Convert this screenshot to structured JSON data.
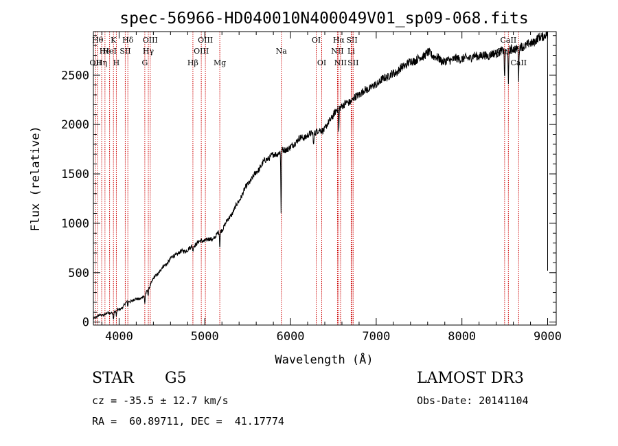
{
  "chart_data": {
    "type": "line",
    "title": "spec-56966-HD040010N400049V01_sp09-068.fits",
    "xlabel": "Wavelength (Å)",
    "ylabel": "Flux (relative)",
    "xlim": [
      3700,
      9100
    ],
    "ylim": [
      -30,
      2940
    ],
    "xticks": [
      4000,
      5000,
      6000,
      7000,
      8000,
      9000
    ],
    "yticks": [
      0,
      500,
      1000,
      1500,
      2000,
      2500
    ],
    "line_color": "#000000",
    "marker_color": "#cc0000",
    "spectrum_anchors": {
      "x": [
        3700,
        3800,
        3900,
        4000,
        4100,
        4200,
        4300,
        4400,
        4500,
        4600,
        4700,
        4800,
        4900,
        5000,
        5100,
        5200,
        5300,
        5400,
        5500,
        5600,
        5700,
        5800,
        5900,
        6000,
        6100,
        6200,
        6300,
        6400,
        6500,
        6600,
        6700,
        6800,
        6900,
        7000,
        7200,
        7400,
        7600,
        7800,
        8000,
        8200,
        8400,
        8500,
        8600,
        8700,
        8800,
        8900,
        9000
      ],
      "y": [
        50,
        70,
        90,
        130,
        200,
        230,
        270,
        430,
        550,
        640,
        700,
        740,
        790,
        830,
        850,
        930,
        1080,
        1230,
        1390,
        1520,
        1630,
        1690,
        1740,
        1760,
        1860,
        1890,
        1920,
        1960,
        2100,
        2190,
        2240,
        2300,
        2360,
        2410,
        2520,
        2630,
        2720,
        2640,
        2670,
        2690,
        2720,
        2740,
        2770,
        2780,
        2820,
        2880,
        2910
      ]
    },
    "absorption_dips": [
      {
        "x": 3934,
        "depth": 70
      },
      {
        "x": 3968,
        "depth": 60
      },
      {
        "x": 4101,
        "depth": 50
      },
      {
        "x": 4300,
        "depth": 90
      },
      {
        "x": 4340,
        "depth": 60
      },
      {
        "x": 4861,
        "depth": 50
      },
      {
        "x": 5175,
        "depth": 160
      },
      {
        "x": 5890,
        "depth": 620
      },
      {
        "x": 6270,
        "depth": 130
      },
      {
        "x": 6563,
        "depth": 250
      },
      {
        "x": 8498,
        "depth": 300
      },
      {
        "x": 8542,
        "depth": 360
      },
      {
        "x": 8662,
        "depth": 330
      }
    ],
    "spectral_lines": [
      {
        "x": 3726,
        "label": "OII",
        "row": 2
      },
      {
        "x": 3750,
        "label": "Hθ",
        "row": 0
      },
      {
        "x": 3797,
        "label": "Hη",
        "row": 2
      },
      {
        "x": 3835,
        "label": "He",
        "row": 1
      },
      {
        "x": 3889,
        "label": "HeI",
        "row": 1
      },
      {
        "x": 3934,
        "label": "K",
        "row": 0
      },
      {
        "x": 3968,
        "label": "H",
        "row": 2
      },
      {
        "x": 4072,
        "label": "SII",
        "row": 1
      },
      {
        "x": 4102,
        "label": "Hδ",
        "row": 0
      },
      {
        "x": 4300,
        "label": "G",
        "row": 2
      },
      {
        "x": 4341,
        "label": "Hγ",
        "row": 1
      },
      {
        "x": 4363,
        "label": "OIII",
        "row": 0
      },
      {
        "x": 4861,
        "label": "Hβ",
        "row": 2
      },
      {
        "x": 4959,
        "label": "OIII",
        "row": 1
      },
      {
        "x": 5007,
        "label": "OIII",
        "row": 0
      },
      {
        "x": 5175,
        "label": "Mg",
        "row": 2
      },
      {
        "x": 5893,
        "label": "Na",
        "row": 1
      },
      {
        "x": 6300,
        "label": "OI",
        "row": 0
      },
      {
        "x": 6364,
        "label": "OI",
        "row": 2
      },
      {
        "x": 6548,
        "label": "NII",
        "row": 1
      },
      {
        "x": 6563,
        "label": "Hα",
        "row": 0
      },
      {
        "x": 6584,
        "label": "NII",
        "row": 2
      },
      {
        "x": 6708,
        "label": "Li",
        "row": 1
      },
      {
        "x": 6717,
        "label": "SII",
        "row": 0
      },
      {
        "x": 6731,
        "label": "SII",
        "row": 2
      },
      {
        "x": 8498,
        "label": "CaII",
        "row": 1
      },
      {
        "x": 8542,
        "label": "CaII",
        "row": 0
      },
      {
        "x": 8662,
        "label": "CaII",
        "row": 2
      }
    ]
  },
  "info": {
    "object_class": "STAR",
    "subclass": "G5",
    "survey": "LAMOST DR3",
    "cz": "cz = -35.5 ± 12.7 km/s",
    "obs_date": "Obs-Date: 20141104",
    "coords": "RA =  60.89711, DEC =  41.17774"
  }
}
